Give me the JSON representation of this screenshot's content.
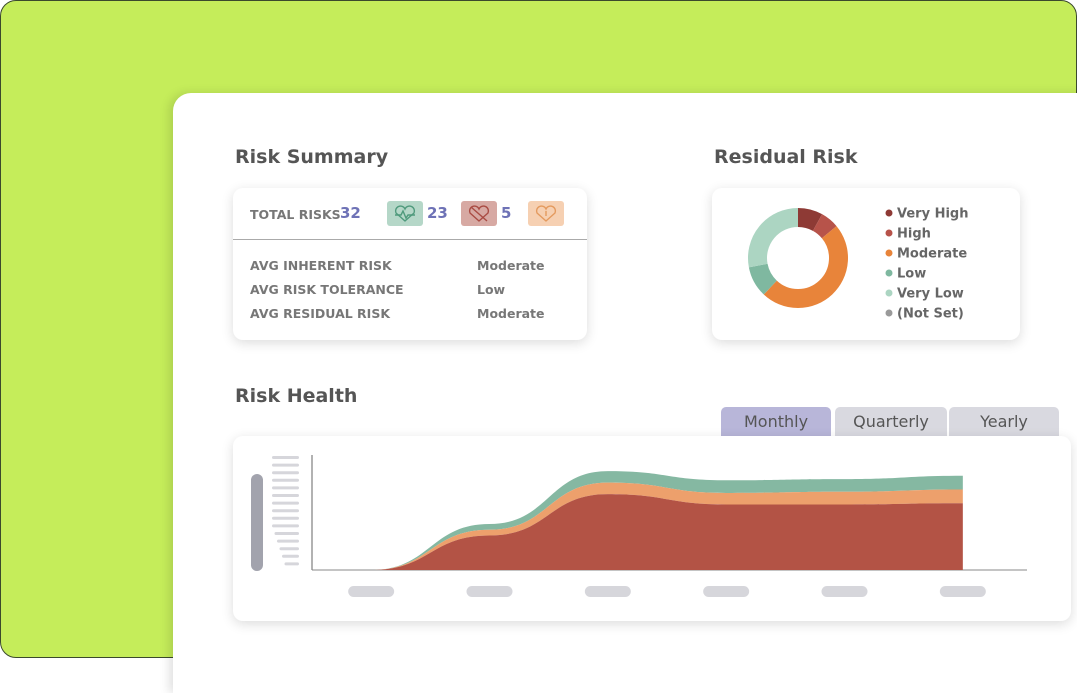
{
  "risk_summary": {
    "title": "Risk Summary",
    "total_label": "TOTAL RISKS",
    "total": 32,
    "healthy": 23,
    "unhealthy": 5,
    "rows": [
      [
        "AVG INHERENT RISK",
        "Moderate"
      ],
      [
        "AVG RISK TOLERANCE",
        "Low"
      ],
      [
        "AVG RESIDUAL RISK",
        "Moderate"
      ]
    ]
  },
  "tabs": [
    "Monthly",
    "Quarterly",
    "Yearly"
  ],
  "chart_data": [
    {
      "type": "donut",
      "title": "Residual Risk",
      "categories": [
        "Very High",
        "High",
        "Moderate",
        "Low",
        "Very Low",
        "(Not Set)"
      ],
      "values": [
        8,
        6,
        48,
        10,
        28,
        0
      ],
      "colors": [
        "#8e3a35",
        "#b7534a",
        "#e8843a",
        "#7fb8a0",
        "#acd5c2",
        "#9a9a9a"
      ]
    },
    {
      "type": "stacked-area",
      "title": "Risk Health",
      "categories": [
        null,
        null,
        null,
        null,
        null,
        null
      ],
      "ylim": [
        0,
        100
      ],
      "series": [
        {
          "color": "#b35345",
          "values": [
            0,
            30,
            66,
            57,
            57,
            58
          ]
        },
        {
          "color": "#eda06c",
          "values": [
            0,
            5,
            10,
            10,
            11,
            12
          ]
        },
        {
          "color": "#85b8a2",
          "values": [
            0,
            5,
            10,
            11,
            11,
            12
          ]
        }
      ]
    }
  ]
}
